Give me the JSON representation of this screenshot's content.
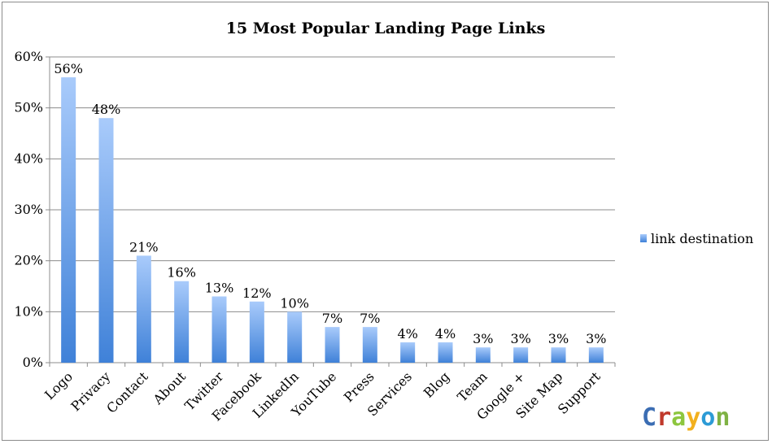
{
  "chart_data": {
    "type": "bar",
    "title": "15 Most Popular Landing Page Links",
    "categories": [
      "Logo",
      "Privacy",
      "Contact",
      "About",
      "Twitter",
      "Facebook",
      "LinkedIn",
      "YouTube",
      "Press",
      "Services",
      "Blog",
      "Team",
      "Google +",
      "Site Map",
      "Support"
    ],
    "series": [
      {
        "name": "link destination",
        "values": [
          56,
          48,
          21,
          16,
          13,
          12,
          10,
          7,
          7,
          4,
          4,
          3,
          3,
          3,
          3
        ],
        "data_labels": [
          "56%",
          "48%",
          "21%",
          "16%",
          "13%",
          "12%",
          "10%",
          "7%",
          "7%",
          "4%",
          "4%",
          "3%",
          "3%",
          "3%",
          "3%"
        ]
      }
    ],
    "ylim": [
      0,
      60
    ],
    "yticks": [
      0,
      10,
      20,
      30,
      40,
      50,
      60
    ],
    "ytick_labels": [
      "0%",
      "10%",
      "20%",
      "30%",
      "40%",
      "50%",
      "60%"
    ],
    "grid": true,
    "legend_position": "right",
    "bar_color_top": "#a9cbfb",
    "bar_color_bottom": "#3f81d8",
    "gridline_color": "#8c8c8c"
  },
  "logo": {
    "letters": [
      "C",
      "r",
      "a",
      "y",
      "o",
      "n"
    ],
    "colors": [
      "#3b6db3",
      "#c0392b",
      "#8dc63f",
      "#f2b01e",
      "#2c9bd6",
      "#7fb244"
    ]
  }
}
